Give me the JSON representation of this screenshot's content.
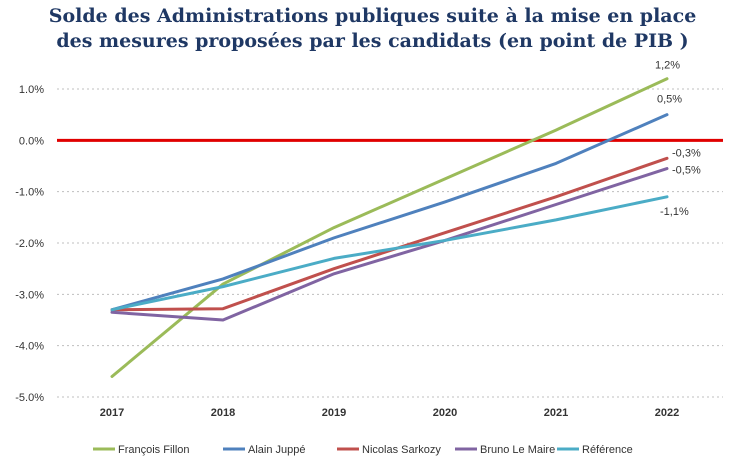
{
  "chart_data": {
    "type": "line",
    "title": "Solde des Administrations publiques suite à la mise en place des mesures proposées par les candidats (en point de PIB )",
    "title_lines": [
      "Solde des Administrations publiques suite à la mise en place",
      "des mesures proposées par les candidats (en point de PIB )"
    ],
    "x": [
      "2017",
      "2018",
      "2019",
      "2020",
      "2021",
      "2022"
    ],
    "ylim": [
      -5.0,
      1.0
    ],
    "yticks": [
      {
        "value": 1.0,
        "label": "1.0%"
      },
      {
        "value": 0.0,
        "label": "0.0%"
      },
      {
        "value": -1.0,
        "label": "-1.0%"
      },
      {
        "value": -2.0,
        "label": "-2.0%"
      },
      {
        "value": -3.0,
        "label": "-3.0%"
      },
      {
        "value": -4.0,
        "label": "-4.0%"
      },
      {
        "value": -5.0,
        "label": "-5.0%"
      }
    ],
    "grid": "horizontal-dotted",
    "reference_line": {
      "value": 0.0,
      "color": "#e00000"
    },
    "legend_position": "bottom",
    "series": [
      {
        "name": "François Fillon",
        "color": "#9bbb59",
        "values": [
          -4.6,
          -2.8,
          -1.7,
          -0.75,
          0.2,
          1.2
        ],
        "end_label": "1,2%"
      },
      {
        "name": "Alain Juppé",
        "color": "#4f81bd",
        "values": [
          -3.3,
          -2.7,
          -1.9,
          -1.2,
          -0.45,
          0.5
        ],
        "end_label": "0,5%"
      },
      {
        "name": "Nicolas Sarkozy",
        "color": "#c0504d",
        "values": [
          -3.3,
          -3.28,
          -2.5,
          -1.8,
          -1.1,
          -0.35
        ],
        "end_label": "-0,3%"
      },
      {
        "name": "Bruno Le Maire",
        "color": "#8064a2",
        "values": [
          -3.35,
          -3.5,
          -2.6,
          -1.95,
          -1.25,
          -0.55
        ],
        "end_label": "-0,5%"
      },
      {
        "name": "Référence",
        "color": "#4bacc6",
        "values": [
          -3.3,
          -2.85,
          -2.3,
          -1.95,
          -1.55,
          -1.1
        ],
        "end_label": "-1,1%"
      }
    ]
  }
}
